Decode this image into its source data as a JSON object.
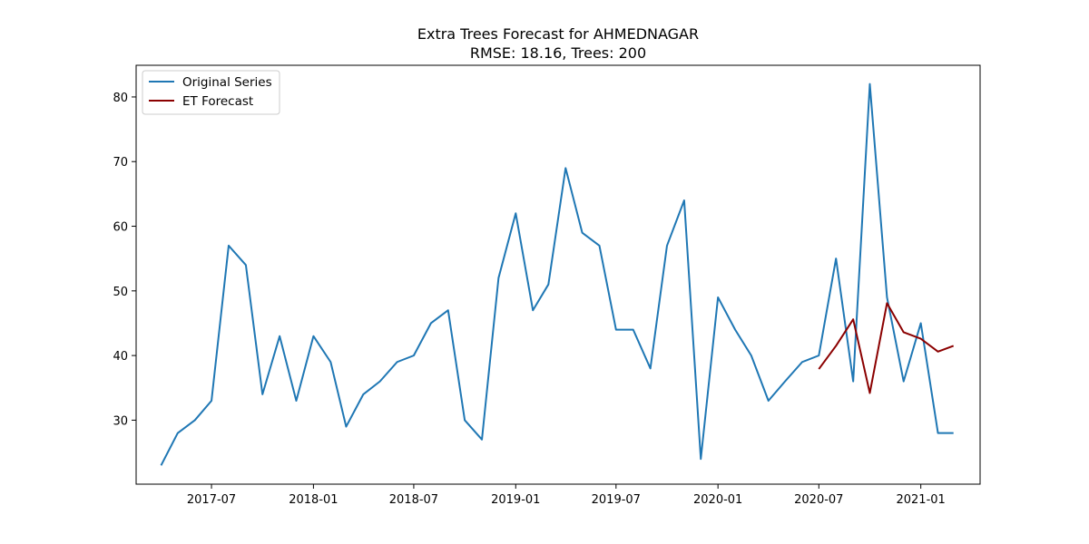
{
  "chart_data": {
    "type": "line",
    "title": "Extra Trees Forecast for AHMEDNAGAR",
    "subtitle": "RMSE: 18.16, Trees: 200",
    "xlabel": "",
    "ylabel": "",
    "x_type": "date",
    "xlim": [
      "2017-02-15",
      "2021-04-18"
    ],
    "ylim": [
      20.1,
      84.9
    ],
    "x_ticks": [
      "2017-07-01",
      "2018-01-01",
      "2018-07-01",
      "2019-01-01",
      "2019-07-01",
      "2020-01-01",
      "2020-07-01",
      "2021-01-01"
    ],
    "x_tick_labels": [
      "2017-07",
      "2018-01",
      "2018-07",
      "2019-01",
      "2019-07",
      "2020-01",
      "2020-07",
      "2021-01"
    ],
    "y_ticks": [
      30,
      40,
      50,
      60,
      70,
      80
    ],
    "grid": false,
    "legend_position": "top-left",
    "series": [
      {
        "name": "Original Series",
        "color": "#1f77b4",
        "x": [
          "2017-04-01",
          "2017-05-01",
          "2017-06-01",
          "2017-07-01",
          "2017-08-01",
          "2017-09-01",
          "2017-10-01",
          "2017-11-01",
          "2017-12-01",
          "2018-01-01",
          "2018-02-01",
          "2018-03-01",
          "2018-04-01",
          "2018-05-01",
          "2018-06-01",
          "2018-07-01",
          "2018-08-01",
          "2018-09-01",
          "2018-10-01",
          "2018-11-01",
          "2018-12-01",
          "2019-01-01",
          "2019-02-01",
          "2019-03-01",
          "2019-04-01",
          "2019-05-01",
          "2019-06-01",
          "2019-07-01",
          "2019-08-01",
          "2019-09-01",
          "2019-10-01",
          "2019-11-01",
          "2019-12-01",
          "2020-01-01",
          "2020-02-01",
          "2020-03-01",
          "2020-04-01",
          "2020-05-01",
          "2020-06-01",
          "2020-07-01",
          "2020-08-01",
          "2020-09-01",
          "2020-10-01",
          "2020-11-01",
          "2020-12-01",
          "2021-01-01",
          "2021-02-01",
          "2021-03-01"
        ],
        "values": [
          23,
          28,
          30,
          33,
          57,
          54,
          34,
          43,
          33,
          43,
          39,
          29,
          34,
          36,
          39,
          40,
          45,
          47,
          30,
          27,
          52,
          62,
          47,
          51,
          69,
          59,
          57,
          44,
          44,
          38,
          57,
          64,
          24,
          49,
          44,
          40,
          33,
          36,
          39,
          40,
          55,
          36,
          82,
          49,
          36,
          45,
          28,
          28
        ]
      },
      {
        "name": "ET Forecast",
        "color": "#8b0000",
        "x": [
          "2020-07-01",
          "2020-08-01",
          "2020-09-01",
          "2020-10-01",
          "2020-11-01",
          "2020-12-01",
          "2021-01-01",
          "2021-02-01",
          "2021-03-01"
        ],
        "values": [
          37.9,
          41.5,
          45.6,
          34.2,
          48.1,
          43.6,
          42.6,
          40.6,
          41.5
        ]
      }
    ]
  }
}
